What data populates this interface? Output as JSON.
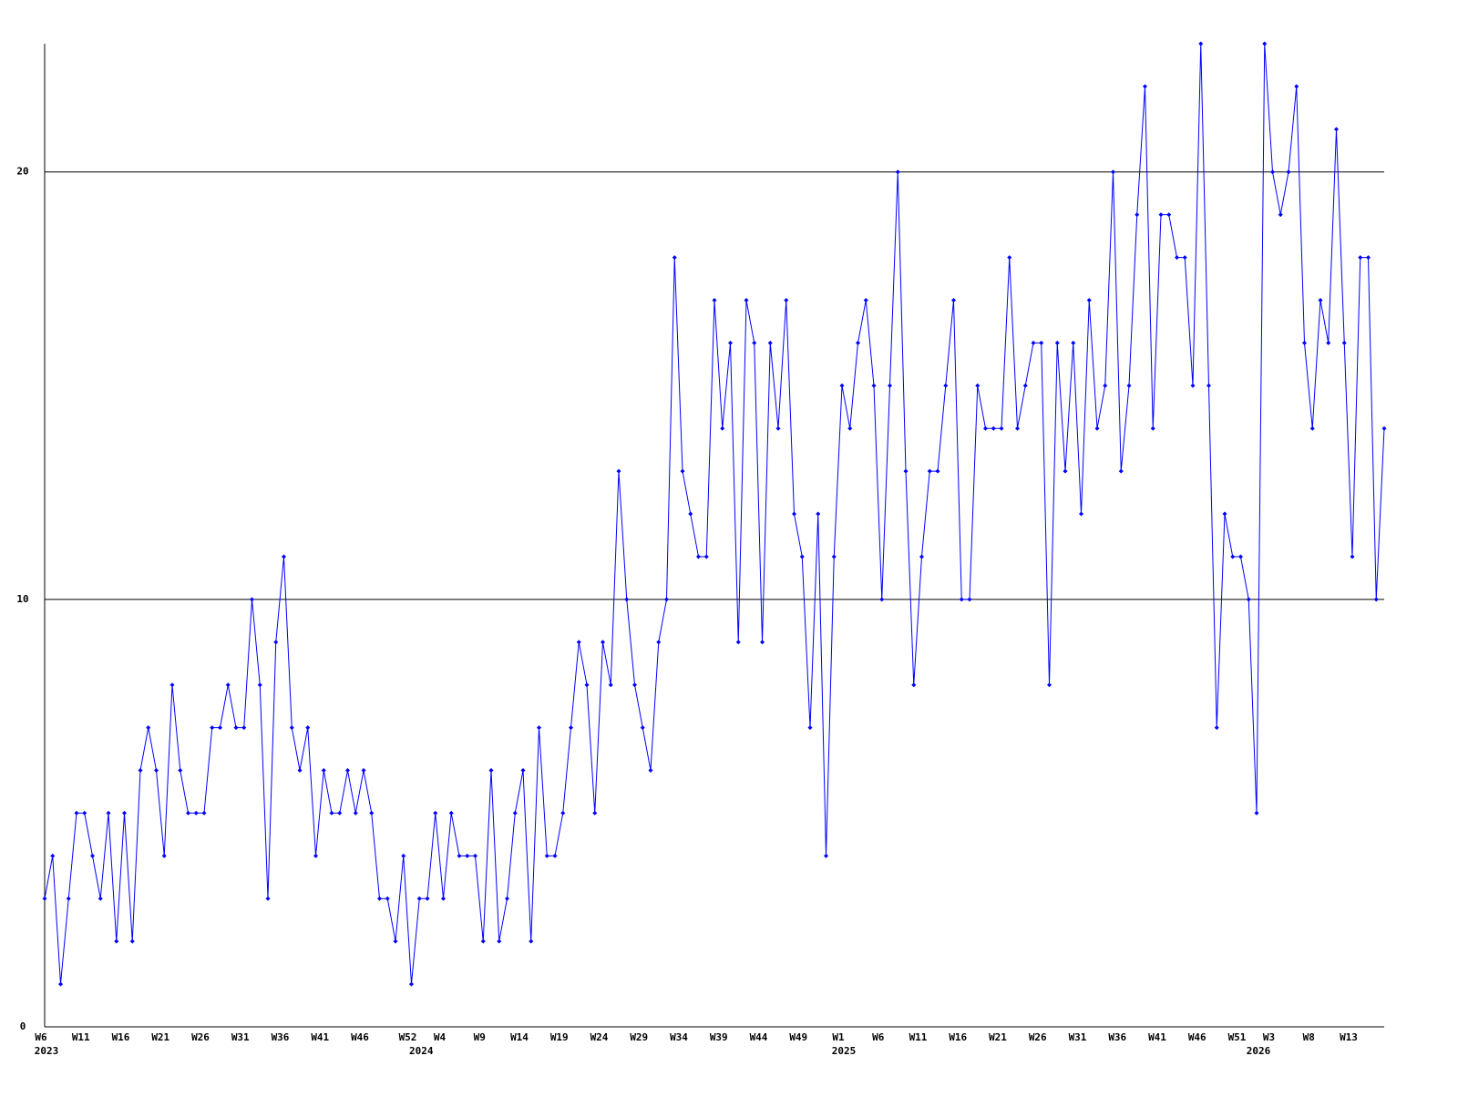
{
  "chart_data": {
    "type": "line",
    "categories": [
      "W6",
      null,
      null,
      null,
      null,
      "W11",
      null,
      null,
      null,
      null,
      "W16",
      null,
      null,
      null,
      null,
      "W21",
      null,
      null,
      null,
      null,
      "W26",
      null,
      null,
      null,
      null,
      "W31",
      null,
      null,
      null,
      null,
      "W36",
      null,
      null,
      null,
      null,
      "W41",
      null,
      null,
      null,
      null,
      "W46",
      null,
      null,
      null,
      null,
      null,
      "W52",
      null,
      null,
      null,
      "W4",
      null,
      null,
      null,
      null,
      "W9",
      null,
      null,
      null,
      null,
      "W14",
      null,
      null,
      null,
      null,
      "W19",
      null,
      null,
      null,
      null,
      "W24",
      null,
      null,
      null,
      null,
      "W29",
      null,
      null,
      null,
      null,
      "W34",
      null,
      null,
      null,
      null,
      "W39",
      null,
      null,
      null,
      null,
      "W44",
      null,
      null,
      null,
      null,
      "W49",
      null,
      null,
      null,
      null,
      "W1",
      null,
      null,
      null,
      null,
      "W6",
      null,
      null,
      null,
      null,
      "W11",
      null,
      null,
      null,
      null,
      "W16",
      null,
      null,
      null,
      null,
      "W21",
      null,
      null,
      null,
      null,
      "W26",
      null,
      null,
      null,
      null,
      "W31",
      null,
      null,
      null,
      null,
      "W36",
      null,
      null,
      null,
      null,
      "W41",
      null,
      null,
      null,
      null,
      "W46",
      null,
      null,
      null,
      null,
      "W51",
      null,
      null,
      null,
      "W3",
      null,
      null,
      null,
      null,
      "W8",
      null,
      null,
      null,
      null,
      "W13",
      null,
      null,
      null,
      null
    ],
    "years": [
      "2023",
      null,
      null,
      null,
      null,
      null,
      null,
      null,
      null,
      null,
      null,
      null,
      null,
      null,
      null,
      null,
      null,
      null,
      null,
      null,
      null,
      null,
      null,
      null,
      null,
      null,
      null,
      null,
      null,
      null,
      null,
      null,
      null,
      null,
      null,
      null,
      null,
      null,
      null,
      null,
      null,
      null,
      null,
      null,
      null,
      null,
      null,
      "2024",
      null,
      null,
      null,
      null,
      null,
      null,
      null,
      null,
      null,
      null,
      null,
      null,
      null,
      null,
      null,
      null,
      null,
      null,
      null,
      null,
      null,
      null,
      null,
      null,
      null,
      null,
      null,
      null,
      null,
      null,
      null,
      null,
      null,
      null,
      null,
      null,
      null,
      null,
      null,
      null,
      null,
      null,
      null,
      null,
      null,
      null,
      null,
      null,
      null,
      null,
      null,
      null,
      "2025",
      null,
      null,
      null,
      null,
      null,
      null,
      null,
      null,
      null,
      null,
      null,
      null,
      null,
      null,
      null,
      null,
      null,
      null,
      null,
      null,
      null,
      null,
      null,
      null,
      null,
      null,
      null,
      null,
      null,
      null,
      null,
      null,
      null,
      null,
      null,
      null,
      null,
      null,
      null,
      null,
      null,
      null,
      null,
      null,
      null,
      null,
      null,
      null,
      null,
      null,
      null,
      "2026",
      null,
      null,
      null,
      null,
      null,
      null,
      null,
      null,
      null,
      null,
      null,
      null,
      null,
      null,
      null,
      null
    ],
    "values": [
      3,
      4,
      1,
      3,
      5,
      5,
      4,
      3,
      5,
      2,
      5,
      2,
      6,
      7,
      6,
      4,
      8,
      6,
      5,
      5,
      5,
      7,
      7,
      8,
      7,
      7,
      10,
      8,
      3,
      9,
      11,
      7,
      6,
      7,
      4,
      6,
      5,
      5,
      6,
      5,
      6,
      5,
      3,
      3,
      2,
      4,
      1,
      3,
      3,
      5,
      3,
      5,
      4,
      4,
      4,
      2,
      6,
      2,
      3,
      5,
      6,
      2,
      7,
      4,
      4,
      5,
      7,
      9,
      8,
      5,
      9,
      8,
      13,
      10,
      8,
      7,
      6,
      9,
      10,
      18,
      13,
      12,
      11,
      11,
      17,
      14,
      16,
      9,
      17,
      16,
      9,
      16,
      14,
      17,
      12,
      11,
      7,
      12,
      4,
      11,
      15,
      14,
      16,
      17,
      15,
      10,
      15,
      20,
      13,
      8,
      11,
      13,
      13,
      15,
      17,
      10,
      10,
      15,
      14,
      14,
      14,
      18,
      14,
      15,
      16,
      16,
      8,
      16,
      13,
      16,
      12,
      17,
      14,
      15,
      20,
      13,
      15,
      19,
      22,
      14,
      19,
      19,
      18,
      18,
      15,
      23,
      15,
      7,
      12,
      11,
      11,
      10,
      5,
      23,
      20,
      19,
      20,
      22,
      16,
      14,
      17,
      16,
      21,
      16,
      11,
      18,
      18,
      10,
      14
    ],
    "color": "#0000ff",
    "ylim": [
      0,
      23
    ],
    "yticks": [
      0,
      10,
      20
    ],
    "grid": true
  }
}
